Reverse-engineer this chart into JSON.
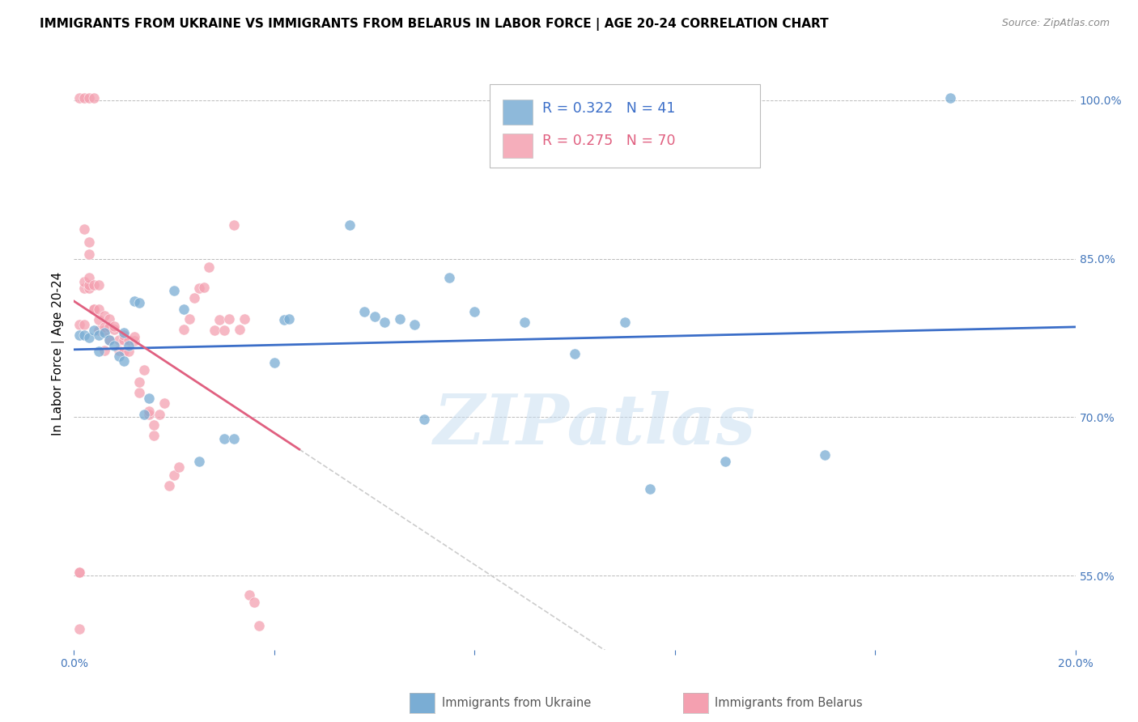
{
  "title": "IMMIGRANTS FROM UKRAINE VS IMMIGRANTS FROM BELARUS IN LABOR FORCE | AGE 20-24 CORRELATION CHART",
  "source": "Source: ZipAtlas.com",
  "ylabel": "In Labor Force | Age 20-24",
  "xlim": [
    0.0,
    0.2
  ],
  "ylim": [
    0.48,
    1.04
  ],
  "ytick_positions": [
    0.55,
    0.7,
    0.85,
    1.0
  ],
  "ytick_labels": [
    "55.0%",
    "70.0%",
    "85.0%",
    "100.0%"
  ],
  "xtick_positions": [
    0.0,
    0.04,
    0.08,
    0.12,
    0.16,
    0.2
  ],
  "xtick_labels": [
    "0.0%",
    "",
    "",
    "",
    "",
    "20.0%"
  ],
  "ukraine_R": 0.322,
  "ukraine_N": 41,
  "belarus_R": 0.275,
  "belarus_N": 70,
  "ukraine_color": "#7AADD4",
  "belarus_color": "#F4A0B0",
  "ukraine_line_color": "#3B6EC8",
  "belarus_line_color": "#E06080",
  "watermark": "ZIPatlas",
  "watermark_color": "#C5DCF0",
  "ukraine_x": [
    0.001,
    0.002,
    0.003,
    0.003,
    0.004,
    0.005,
    0.005,
    0.006,
    0.006,
    0.007,
    0.007,
    0.008,
    0.009,
    0.01,
    0.01,
    0.011,
    0.012,
    0.013,
    0.014,
    0.015,
    0.018,
    0.02,
    0.025,
    0.028,
    0.03,
    0.032,
    0.04,
    0.042,
    0.043,
    0.055,
    0.058,
    0.06,
    0.062,
    0.065,
    0.068,
    0.07,
    0.078,
    0.11,
    0.13,
    0.145,
    0.175
  ],
  "ukraine_y": [
    0.78,
    0.778,
    0.775,
    0.77,
    0.782,
    0.778,
    0.765,
    0.78,
    0.775,
    0.772,
    0.778,
    0.768,
    0.76,
    0.78,
    0.755,
    0.768,
    0.81,
    0.808,
    0.705,
    0.718,
    0.82,
    0.802,
    0.658,
    0.68,
    0.682,
    0.68,
    0.752,
    0.79,
    0.792,
    0.882,
    0.8,
    0.795,
    0.79,
    0.792,
    0.788,
    0.698,
    0.832,
    0.632,
    0.658,
    0.664,
    1.002
  ],
  "belarus_x": [
    0.001,
    0.001,
    0.001,
    0.002,
    0.002,
    0.002,
    0.002,
    0.003,
    0.003,
    0.003,
    0.003,
    0.003,
    0.004,
    0.004,
    0.004,
    0.005,
    0.005,
    0.005,
    0.005,
    0.006,
    0.006,
    0.006,
    0.006,
    0.007,
    0.007,
    0.007,
    0.008,
    0.008,
    0.009,
    0.009,
    0.01,
    0.01,
    0.01,
    0.011,
    0.011,
    0.012,
    0.012,
    0.013,
    0.013,
    0.014,
    0.015,
    0.015,
    0.016,
    0.016,
    0.017,
    0.018,
    0.019,
    0.02,
    0.021,
    0.022,
    0.023,
    0.024,
    0.025,
    0.026,
    0.027,
    0.028,
    0.029,
    0.03,
    0.031,
    0.032,
    0.033,
    0.034,
    0.035,
    0.036,
    0.037,
    0.038,
    0.039,
    0.04,
    0.001,
    0.002
  ],
  "belarus_y": [
    0.553,
    0.553,
    0.788,
    0.788,
    0.822,
    0.828,
    0.878,
    0.822,
    0.825,
    0.832,
    0.854,
    0.866,
    0.802,
    0.802,
    0.825,
    0.782,
    0.792,
    0.802,
    0.825,
    0.763,
    0.782,
    0.785,
    0.796,
    0.773,
    0.785,
    0.793,
    0.783,
    0.786,
    0.763,
    0.773,
    0.762,
    0.773,
    0.778,
    0.762,
    0.773,
    0.772,
    0.776,
    0.723,
    0.733,
    0.745,
    0.703,
    0.706,
    0.683,
    0.693,
    0.703,
    0.713,
    0.635,
    0.645,
    0.653,
    0.783,
    0.793,
    0.813,
    0.822,
    0.823,
    0.842,
    0.782,
    0.792,
    0.782,
    0.793,
    0.882,
    0.783,
    0.793,
    0.532,
    0.525,
    0.503,
    0.513,
    0.785,
    0.785,
    0.5,
    0.5
  ],
  "title_fontsize": 11,
  "ylabel_fontsize": 11,
  "tick_fontsize": 10,
  "source_fontsize": 9
}
